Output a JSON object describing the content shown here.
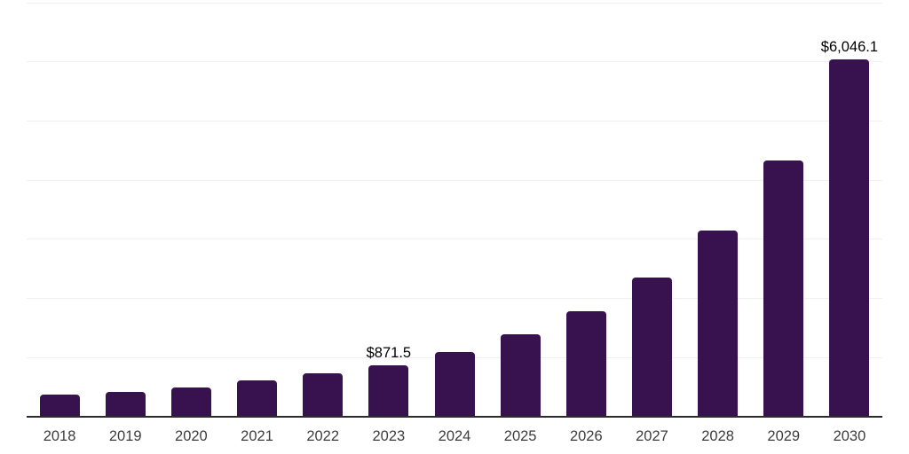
{
  "chart": {
    "colors": {
      "background": "#FFFFFF",
      "bar": "#38124E",
      "gridline": "#F0F0F0",
      "axis_line": "#2B2B2B",
      "tick_label": "#3D3D3D",
      "data_label": "#000000"
    }
  },
  "chart_data": {
    "type": "bar",
    "title": "",
    "xlabel": "",
    "ylabel": "",
    "categories": [
      "2018",
      "2019",
      "2020",
      "2021",
      "2022",
      "2023",
      "2024",
      "2025",
      "2026",
      "2027",
      "2028",
      "2029",
      "2030"
    ],
    "values": [
      375,
      415,
      500,
      610,
      730,
      871.5,
      1090,
      1390,
      1785,
      2350,
      3145,
      4330,
      6046.1
    ],
    "data_labels": [
      "",
      "",
      "",
      "",
      "",
      "$871.5",
      "",
      "",
      "",
      "",
      "",
      "",
      "$6,046.1"
    ],
    "ylim": [
      0,
      7000
    ],
    "gridline_step": 1000,
    "grid": "horizontal",
    "y_axis_tick_labels": "hidden",
    "legend_position": "none"
  }
}
